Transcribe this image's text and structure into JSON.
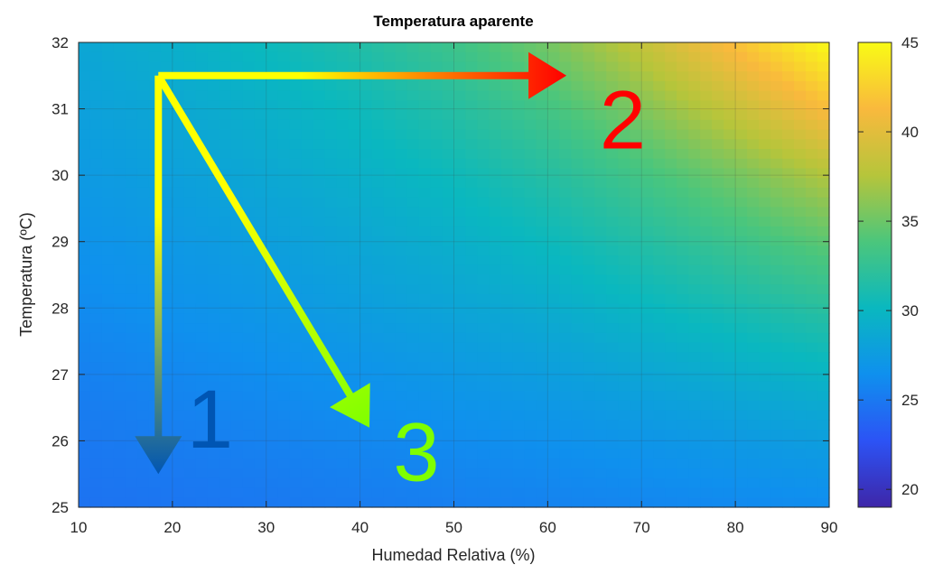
{
  "chart_data": {
    "type": "heatmap",
    "title": "Temperatura aparente",
    "xlabel": "Humedad Relativa (%)",
    "ylabel": "Temperatura (ºC)",
    "xlim": [
      10,
      90
    ],
    "ylim": [
      25,
      32
    ],
    "xticks": [
      10,
      20,
      30,
      40,
      50,
      60,
      70,
      80,
      90
    ],
    "yticks": [
      25,
      26,
      27,
      28,
      29,
      30,
      31,
      32
    ],
    "grid": true,
    "colorbar": {
      "range": [
        19,
        45
      ],
      "ticks": [
        20,
        25,
        30,
        35,
        40,
        45
      ],
      "colormap": [
        "#3e26a8",
        "#2c53f5",
        "#0f90ee",
        "#0ab8bf",
        "#4bc67c",
        "#b6c53b",
        "#f9b93d",
        "#f9fb15"
      ]
    },
    "anchors": {
      "x": [
        10,
        20,
        30,
        40,
        50,
        60,
        70,
        80,
        90
      ],
      "y": [
        25,
        26,
        27,
        28,
        29,
        30,
        31,
        32
      ],
      "values": [
        [
          24.6,
          24.8,
          25.0,
          25.2,
          25.4,
          25.6,
          25.8,
          26.0,
          26.2
        ],
        [
          25.0,
          25.3,
          25.6,
          25.9,
          26.2,
          26.5,
          26.9,
          27.3,
          27.7
        ],
        [
          25.5,
          25.9,
          26.3,
          26.7,
          27.2,
          27.7,
          28.4,
          29.1,
          29.8
        ],
        [
          26.1,
          26.6,
          27.1,
          27.7,
          28.3,
          29.0,
          30.0,
          31.0,
          32.0
        ],
        [
          26.7,
          27.2,
          27.8,
          28.5,
          29.3,
          30.3,
          31.6,
          33.0,
          34.5
        ],
        [
          27.3,
          27.9,
          28.6,
          29.4,
          30.4,
          31.7,
          33.4,
          35.3,
          37.5
        ],
        [
          27.9,
          28.6,
          29.4,
          30.4,
          31.7,
          33.4,
          35.7,
          38.5,
          41.5
        ],
        [
          28.5,
          29.3,
          30.3,
          31.5,
          33.1,
          35.3,
          38.3,
          41.8,
          45.0
        ]
      ]
    },
    "annotations": [
      {
        "label": "1",
        "color": "#0055b3",
        "arrow": {
          "from": [
            18.5,
            31.5
          ],
          "to": [
            18.5,
            25.5
          ],
          "color_start": "#ffff00",
          "color_end": "#0055b3"
        },
        "text_at": [
          24,
          25.9
        ]
      },
      {
        "label": "2",
        "color": "#ff0000",
        "arrow": {
          "from": [
            18.5,
            31.5
          ],
          "to": [
            62,
            31.5
          ],
          "color_start": "#ffff00",
          "color_end": "#ff0000"
        },
        "text_at": [
          68,
          30.4
        ]
      },
      {
        "label": "3",
        "color": "#7fff00",
        "arrow": {
          "from": [
            18.5,
            31.5
          ],
          "to": [
            41,
            26.2
          ],
          "color_start": "#ffff00",
          "color_end": "#7fff00"
        },
        "text_at": [
          46,
          25.4
        ]
      }
    ]
  }
}
